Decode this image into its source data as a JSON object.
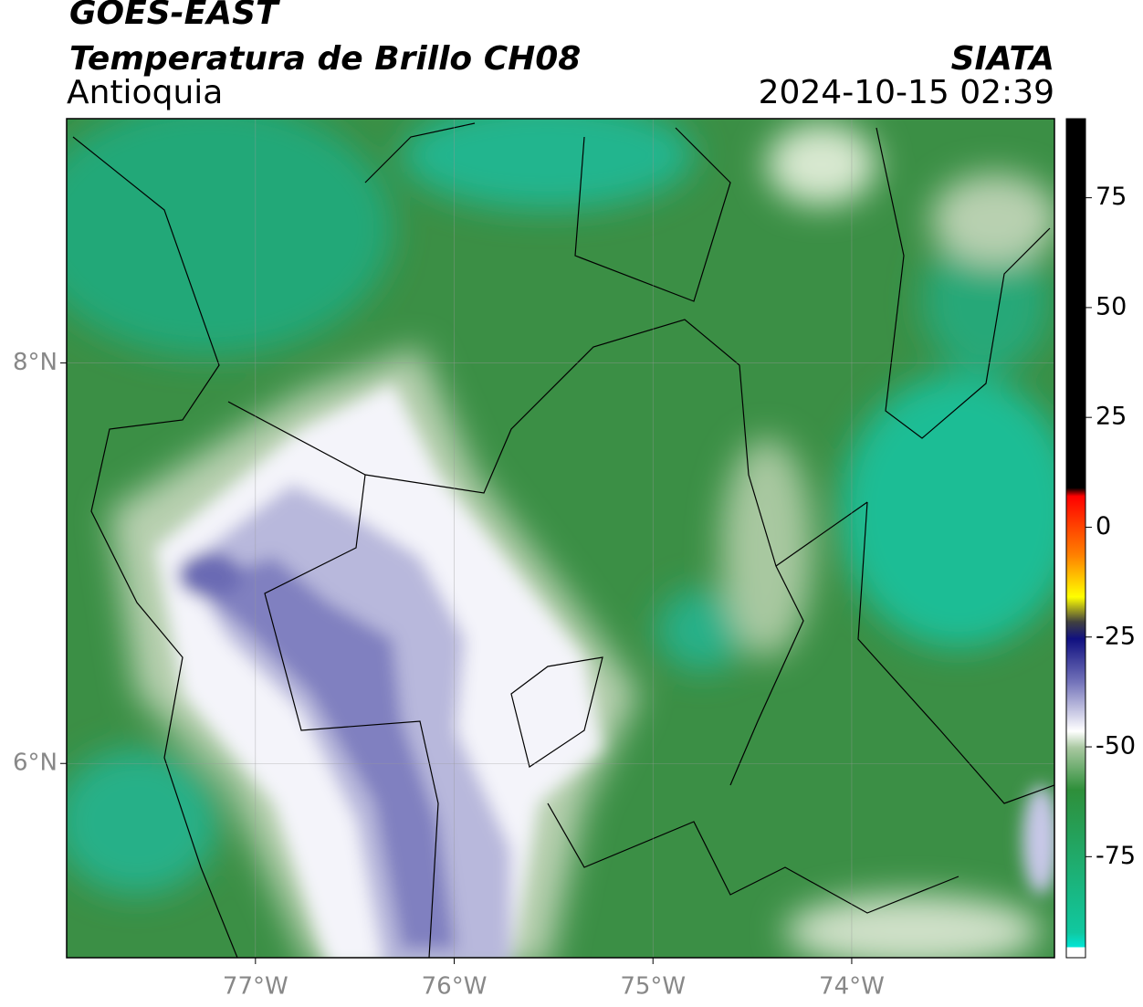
{
  "header": {
    "title": "GOES-EAST",
    "subtitle": "Temperatura de Brillo CH08",
    "region": "Antioquia",
    "source": "SIATA",
    "datetime": "2024-10-15 02:39"
  },
  "map": {
    "xlim": [
      -77.95,
      -72.98
    ],
    "ylim": [
      5.03,
      9.22
    ],
    "xticks": [
      {
        "value": -77,
        "label": "77°W"
      },
      {
        "value": -76,
        "label": "76°W"
      },
      {
        "value": -75,
        "label": "75°W"
      },
      {
        "value": -74,
        "label": "74°W"
      }
    ],
    "yticks": [
      {
        "value": 8,
        "label": "8°N"
      },
      {
        "value": 6,
        "label": "6°N"
      }
    ],
    "grid": true
  },
  "colorbar": {
    "lim": [
      -98,
      93
    ],
    "ticks": [
      -75,
      -50,
      -25,
      0,
      25,
      50,
      75
    ]
  }
}
